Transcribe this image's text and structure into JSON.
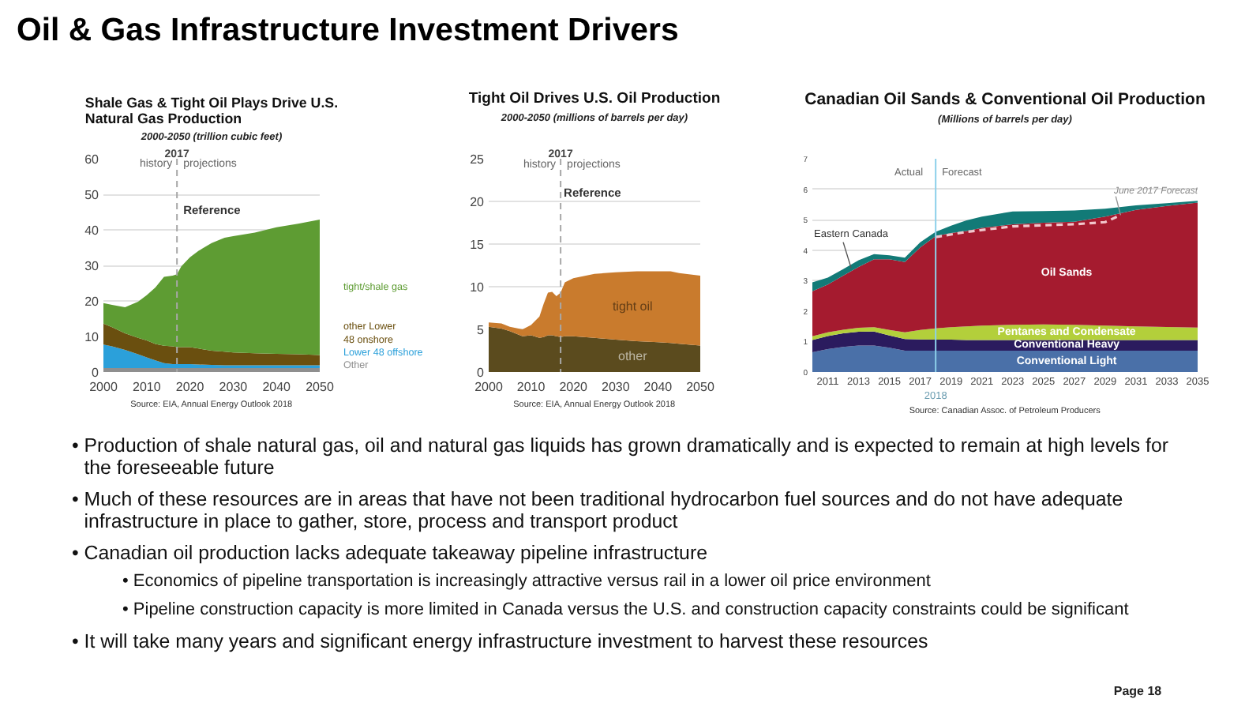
{
  "chart_data": [
    {
      "type": "other",
      "title": "Oil & Gas Infrastructure Investment Drivers"
    },
    {
      "type": "area",
      "stacked": true,
      "title": "Shale Gas & Tight Oil Plays Drive U.S. Natural Gas Production",
      "subtitle": "2000-2050 (trillion cubic feet)",
      "x": [
        2000,
        2002,
        2005,
        2008,
        2010,
        2012,
        2014,
        2016,
        2017,
        2018,
        2020,
        2022,
        2025,
        2028,
        2030,
        2035,
        2040,
        2045,
        2050
      ],
      "series": [
        {
          "name": "Other",
          "color": "#8f8f8f",
          "values": [
            1.1,
            1.1,
            1.1,
            1.1,
            1.1,
            1.1,
            1.1,
            1.1,
            1.1,
            1.1,
            1.1,
            1.1,
            1.1,
            1.1,
            1.1,
            1.1,
            1.1,
            1.1,
            1.1
          ]
        },
        {
          "name": "Lower 48 offshore",
          "color": "#2ba0da",
          "values": [
            6.6,
            6.1,
            5.1,
            3.9,
            3.0,
            2.2,
            1.4,
            1.1,
            1.1,
            1.1,
            1.1,
            1.0,
            0.9,
            0.8,
            0.8,
            0.8,
            0.8,
            0.8,
            0.8
          ]
        },
        {
          "name": "other Lower 48 onshore",
          "color": "#6a4f0f",
          "values": [
            5.9,
            5.4,
            4.7,
            4.6,
            4.8,
            4.6,
            4.9,
            5.0,
            4.8,
            4.8,
            4.8,
            4.5,
            4.0,
            3.8,
            3.6,
            3.4,
            3.2,
            3.1,
            2.9
          ]
        },
        {
          "name": "tight/shale gas",
          "color": "#5e9c33",
          "values": [
            5.8,
            6.3,
            7.3,
            10.2,
            12.7,
            15.9,
            19.4,
            19.9,
            20.5,
            22.7,
            25.3,
            27.5,
            30.3,
            32.1,
            32.7,
            33.9,
            35.6,
            36.7,
            38.1
          ]
        }
      ],
      "xlim": [
        2000,
        2050
      ],
      "xticks": [
        2000,
        2010,
        2020,
        2030,
        2040,
        2050
      ],
      "ylim": [
        0,
        60
      ],
      "yticks": [
        0,
        10,
        20,
        30,
        40,
        50,
        60
      ],
      "grid": "y",
      "ref_lines": [
        {
          "axis": "x",
          "value": 2017,
          "label": "2017",
          "color": "#a8a8a8",
          "line_style": "dashed"
        }
      ],
      "annotations": [
        "history",
        "projections",
        "Reference",
        "Source: EIA, Annual Energy Outlook 2018"
      ]
    },
    {
      "type": "area",
      "stacked": true,
      "title": "Tight Oil Drives U.S. Oil Production",
      "subtitle": "2000-2050 (millions of barrels per day)",
      "x": [
        2000,
        2003,
        2005,
        2008,
        2010,
        2012,
        2013,
        2014,
        2015,
        2016,
        2017,
        2018,
        2020,
        2025,
        2030,
        2035,
        2040,
        2043,
        2045,
        2050
      ],
      "series": [
        {
          "name": "other",
          "color": "#5b4b1e",
          "values": [
            5.3,
            5.1,
            4.8,
            4.2,
            4.3,
            4,
            4.1,
            4.3,
            4.3,
            4.2,
            4.1,
            4.2,
            4.2,
            4,
            3.8,
            3.6,
            3.5,
            3.4,
            3.3,
            3.1
          ]
        },
        {
          "name": "tight oil",
          "color": "#c97b2d",
          "values": [
            0.5,
            0.6,
            0.5,
            0.8,
            1.2,
            2.5,
            3.9,
            5,
            5.1,
            4.7,
            5.2,
            6.3,
            6.8,
            7.5,
            7.9,
            8.2,
            8.3,
            8.4,
            8.3,
            8.2
          ]
        }
      ],
      "xlim": [
        2000,
        2050
      ],
      "xticks": [
        2000,
        2010,
        2020,
        2030,
        2040,
        2050
      ],
      "ylim": [
        0,
        25
      ],
      "yticks": [
        0,
        5,
        10,
        15,
        20,
        25
      ],
      "grid": "y",
      "ref_lines": [
        {
          "axis": "x",
          "value": 2017,
          "label": "2017",
          "color": "#a8a8a8",
          "line_style": "dashed"
        }
      ],
      "annotations": [
        "history",
        "projections",
        "Reference",
        "Source: EIA, Annual Energy Outlook 2018"
      ]
    },
    {
      "type": "area",
      "stacked": true,
      "title": "Canadian Oil Sands & Conventional Oil Production",
      "subtitle": "(Millions of barrels per day)",
      "x": [
        2010,
        2011,
        2012,
        2013,
        2014,
        2015,
        2016,
        2017,
        2018,
        2019,
        2020,
        2021,
        2023,
        2025,
        2027,
        2029,
        2031,
        2033,
        2035
      ],
      "series": [
        {
          "name": "Conventional Light",
          "color": "#4a70a8",
          "values": [
            0.65,
            0.75,
            0.82,
            0.87,
            0.87,
            0.8,
            0.7,
            0.7,
            0.7,
            0.7,
            0.7,
            0.7,
            0.7,
            0.7,
            0.7,
            0.7,
            0.7,
            0.7,
            0.7
          ]
        },
        {
          "name": "Conventional Heavy",
          "color": "#2b1b5e",
          "values": [
            0.4,
            0.43,
            0.45,
            0.45,
            0.46,
            0.4,
            0.38,
            0.37,
            0.36,
            0.36,
            0.35,
            0.35,
            0.35,
            0.35,
            0.35,
            0.35,
            0.35,
            0.35,
            0.35
          ]
        },
        {
          "name": "Pentanes and Condensate",
          "color": "#b3cf3b",
          "values": [
            0.12,
            0.12,
            0.12,
            0.13,
            0.14,
            0.18,
            0.22,
            0.31,
            0.37,
            0.41,
            0.45,
            0.47,
            0.5,
            0.51,
            0.5,
            0.47,
            0.45,
            0.43,
            0.41
          ]
        },
        {
          "name": "Oil Sands",
          "color": "#a51b2f",
          "values": [
            1.48,
            1.57,
            1.77,
            2.0,
            2.23,
            2.32,
            2.31,
            2.71,
            3.03,
            3.09,
            3.13,
            3.21,
            3.3,
            3.34,
            3.38,
            3.58,
            3.82,
            3.97,
            4.1
          ]
        },
        {
          "name": "Eastern Canada",
          "color": "#127a77",
          "values": [
            0.29,
            0.23,
            0.22,
            0.22,
            0.17,
            0.13,
            0.14,
            0.17,
            0.14,
            0.24,
            0.35,
            0.37,
            0.42,
            0.38,
            0.37,
            0.26,
            0.15,
            0.09,
            0.06
          ]
        },
        {
          "name": "June 2017 Forecast",
          "type": "line",
          "line_style": "dashed",
          "color": "#f2c6cc",
          "x": [
            2018,
            2020,
            2023,
            2027,
            2029,
            2030
          ],
          "values": [
            4.43,
            4.6,
            4.78,
            4.85,
            4.92,
            5.15
          ]
        }
      ],
      "xlim": [
        2010,
        2035
      ],
      "xticks": [
        2011,
        2013,
        2015,
        2017,
        2019,
        2021,
        2023,
        2025,
        2027,
        2029,
        2031,
        2033,
        2035
      ],
      "ylim": [
        0,
        7
      ],
      "yticks": [
        0,
        1,
        2,
        3,
        4,
        5,
        6,
        7
      ],
      "grid": "y",
      "ref_lines": [
        {
          "axis": "x",
          "value": 2018,
          "label": "2018",
          "color": "#8dd0ea",
          "line_style": "solid"
        }
      ],
      "annotations": [
        "Actual",
        "Forecast",
        "Source: Canadian Assoc. of Petroleum Producers"
      ]
    },
    {
      "type": "other",
      "annotations": [
        "• Production of shale natural gas, oil and natural gas liquids has grown dramatically and is expected to remain at high levels for the foreseeable future",
        "• Much of these resources are in areas that have not been traditional hydrocarbon fuel sources and do not have adequate infrastructure in place to gather, store, process and transport product",
        "• Canadian oil production lacks adequate takeaway pipeline infrastructure",
        "• Economics of pipeline transportation is increasingly attractive versus rail in a lower oil price environment",
        "• Pipeline construction capacity is more limited in Canada versus the U.S. and construction capacity constraints could be significant",
        "• It will take many years and significant energy infrastructure investment to harvest these resources",
        "Page 18"
      ]
    }
  ]
}
